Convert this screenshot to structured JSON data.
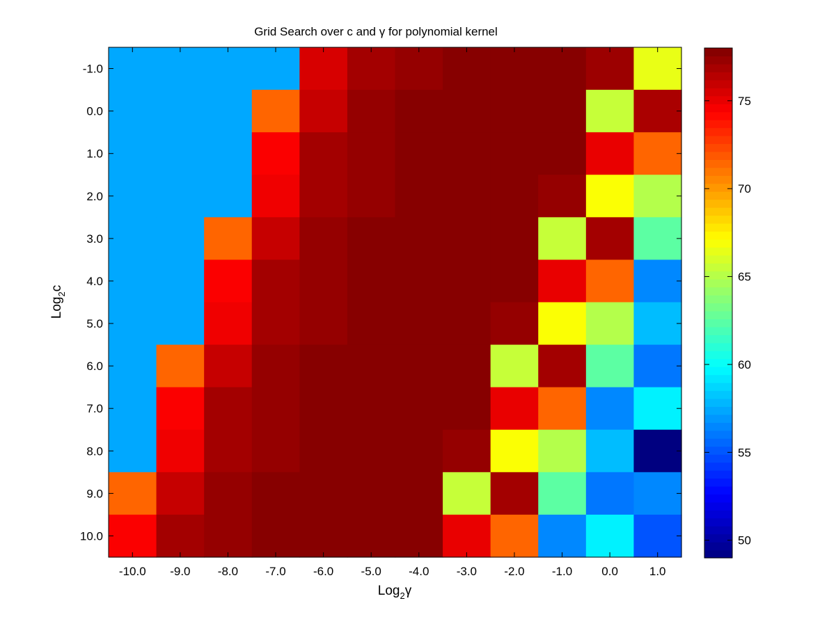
{
  "chart_data": {
    "type": "heatmap",
    "title": "Grid Search over c and  γ for polynomial kernel",
    "xlabel": {
      "base": "Log",
      "sub": "2",
      "rest": "γ"
    },
    "ylabel": {
      "base": "Log",
      "sub": "2",
      "rest": "c"
    },
    "x": [
      "-10.0",
      "-9.0",
      "-8.0",
      "-7.0",
      "-6.0",
      "-5.0",
      "-4.0",
      "-3.0",
      "-2.0",
      "-1.0",
      "0.0",
      "1.0"
    ],
    "y": [
      "-1.0",
      "0.0",
      "1.0",
      "2.0",
      "3.0",
      "4.0",
      "5.0",
      "6.0",
      "7.0",
      "8.0",
      "9.0",
      "10.0"
    ],
    "values": [
      [
        57.4,
        57.4,
        57.4,
        57.4,
        75.5,
        77.0,
        77.4,
        77.8,
        77.8,
        77.8,
        77.2,
        66.5
      ],
      [
        57.4,
        57.4,
        57.4,
        71.5,
        76.0,
        77.4,
        77.8,
        77.8,
        77.8,
        77.8,
        65.5,
        76.8
      ],
      [
        57.4,
        57.4,
        57.4,
        74.5,
        77.0,
        77.4,
        77.8,
        77.8,
        77.8,
        77.8,
        75.0,
        71.5
      ],
      [
        57.4,
        57.4,
        57.4,
        74.8,
        77.0,
        77.4,
        77.8,
        77.8,
        77.8,
        77.4,
        67.0,
        65.0
      ],
      [
        57.4,
        57.4,
        71.5,
        76.0,
        77.4,
        77.8,
        77.8,
        77.8,
        77.8,
        65.5,
        77.0,
        62.5
      ],
      [
        57.4,
        57.4,
        74.5,
        77.0,
        77.4,
        77.8,
        77.8,
        77.8,
        77.8,
        75.0,
        71.5,
        56.5
      ],
      [
        57.4,
        57.4,
        74.8,
        77.0,
        77.4,
        77.8,
        77.8,
        77.8,
        77.4,
        67.0,
        65.0,
        58.0
      ],
      [
        57.4,
        71.5,
        76.0,
        77.4,
        77.8,
        77.8,
        77.8,
        77.8,
        65.5,
        77.0,
        62.5,
        56.0
      ],
      [
        57.4,
        74.5,
        77.0,
        77.4,
        77.8,
        77.8,
        77.8,
        77.8,
        75.0,
        71.5,
        56.5,
        59.5
      ],
      [
        57.4,
        74.8,
        77.0,
        77.4,
        77.8,
        77.8,
        77.8,
        77.4,
        67.0,
        65.0,
        58.0,
        49.0
      ],
      [
        71.5,
        76.0,
        77.4,
        77.8,
        77.8,
        77.8,
        77.8,
        65.5,
        77.0,
        62.5,
        56.0,
        56.5
      ],
      [
        74.5,
        77.0,
        77.4,
        77.8,
        77.8,
        77.8,
        77.8,
        75.0,
        71.5,
        56.5,
        59.5,
        55.0
      ]
    ],
    "colorbar": {
      "range": [
        49,
        78
      ],
      "ticks": [
        50,
        55,
        60,
        65,
        70,
        75
      ],
      "tick_labels": [
        "50",
        "55",
        "60",
        "65",
        "70",
        "75"
      ],
      "colormap": "jet"
    },
    "grid": false,
    "legend": "none"
  }
}
